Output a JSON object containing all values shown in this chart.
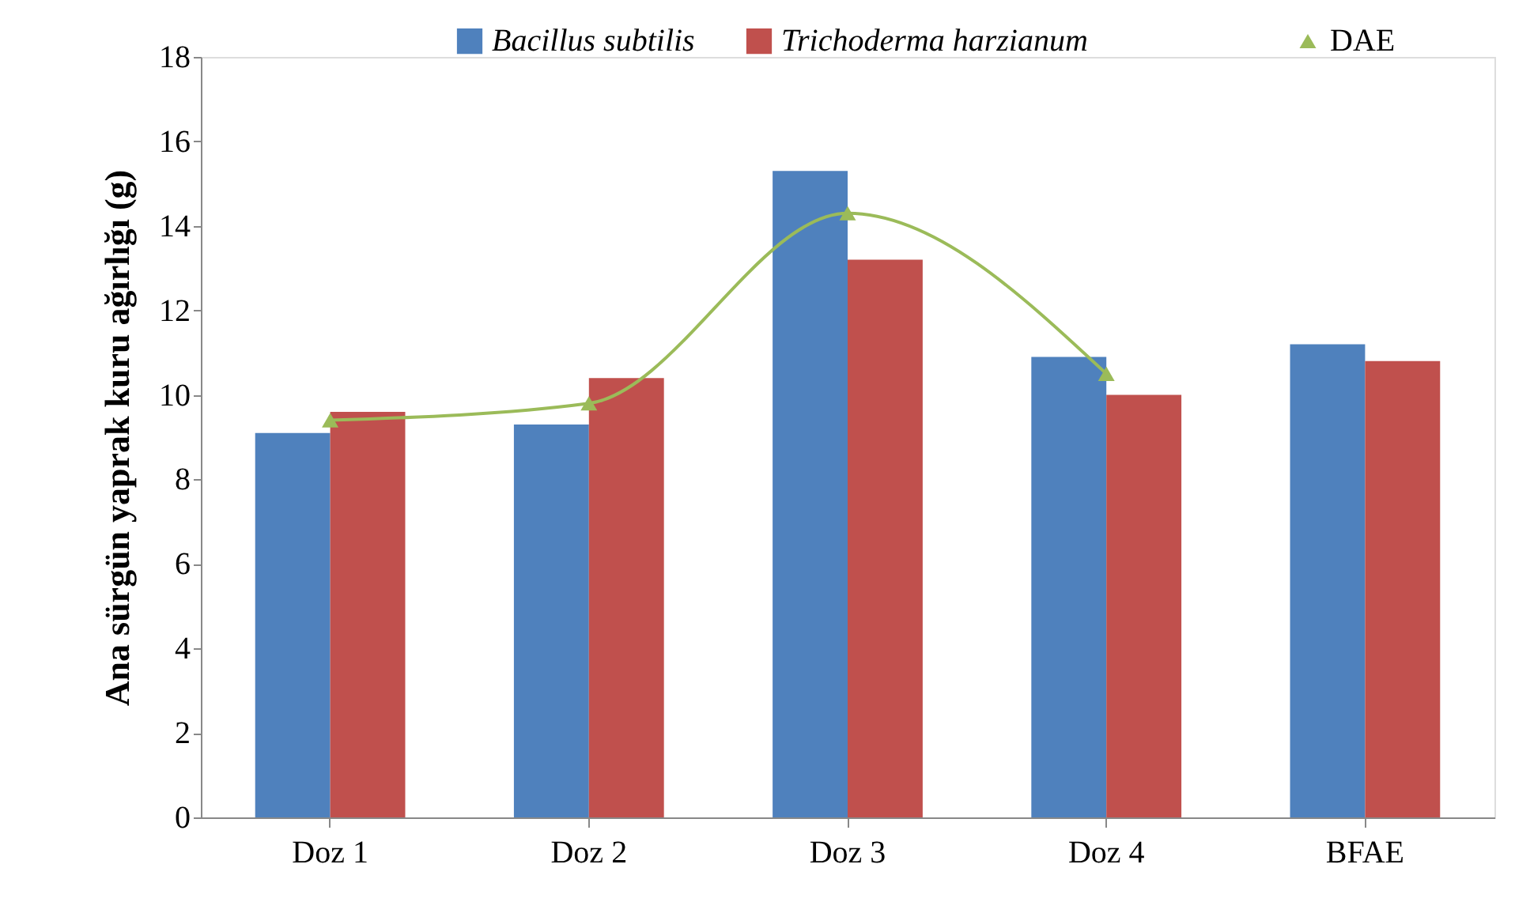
{
  "chart_data": {
    "type": "bar",
    "ylabel": "Ana sürgün yaprak kuru ağırlığı (g)",
    "categories": [
      "Doz 1",
      "Doz 2",
      "Doz 3",
      "Doz 4",
      "BFAE"
    ],
    "series": [
      {
        "name": "Bacillus subtilis",
        "color": "#4f81bd",
        "values": [
          9.1,
          9.3,
          15.3,
          10.9,
          11.2
        ]
      },
      {
        "name": "Trichoderma harzianum",
        "color": "#c0504d",
        "values": [
          9.6,
          10.4,
          13.2,
          10.0,
          10.8
        ]
      },
      {
        "name": "DAE",
        "type": "line",
        "color": "#9bbb59",
        "marker": "triangle",
        "values": [
          9.4,
          9.8,
          14.3,
          10.5,
          null
        ]
      }
    ],
    "ylim": [
      0,
      18
    ],
    "yticks": [
      0,
      2,
      4,
      6,
      8,
      10,
      12,
      14,
      16,
      18
    ],
    "grid": false,
    "legend": "top"
  }
}
